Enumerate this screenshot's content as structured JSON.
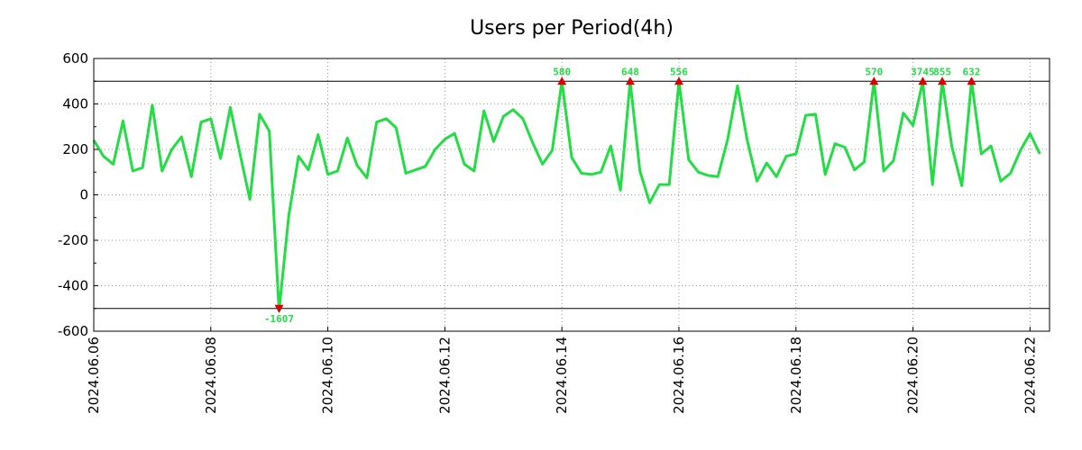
{
  "chart_data": {
    "type": "line",
    "title": "Users per Period(4h)",
    "xlabel": "",
    "ylabel": "",
    "ylim": [
      -600,
      600
    ],
    "xlim": [
      0,
      98
    ],
    "grid": true,
    "y_ticks": [
      600,
      400,
      200,
      0,
      -200,
      -400,
      -600
    ],
    "y_tick_labels": [
      "600",
      "400",
      "200",
      "0",
      "-200",
      "-400",
      "-600"
    ],
    "x_ticks": [
      {
        "x": 0,
        "label": "2024.06.06"
      },
      {
        "x": 12,
        "label": "2024.06.08"
      },
      {
        "x": 24,
        "label": "2024.06.10"
      },
      {
        "x": 36,
        "label": "2024.06.12"
      },
      {
        "x": 48,
        "label": "2024.06.14"
      },
      {
        "x": 60,
        "label": "2024.06.16"
      },
      {
        "x": 72,
        "label": "2024.06.18"
      },
      {
        "x": 84,
        "label": "2024.06.20"
      },
      {
        "x": 96,
        "label": "2024.06.22"
      }
    ],
    "thresholds": [
      500,
      -500
    ],
    "series": [
      {
        "name": "Users",
        "color": "#22dd44",
        "values": [
          240,
          170,
          135,
          325,
          105,
          120,
          395,
          105,
          200,
          255,
          80,
          320,
          335,
          160,
          385,
          180,
          -20,
          355,
          280,
          -510,
          -90,
          170,
          110,
          265,
          90,
          105,
          250,
          130,
          75,
          320,
          335,
          295,
          95,
          110,
          125,
          200,
          245,
          270,
          135,
          105,
          370,
          235,
          345,
          375,
          335,
          230,
          135,
          195,
          500,
          165,
          95,
          90,
          100,
          215,
          20,
          500,
          105,
          -35,
          45,
          45,
          500,
          155,
          100,
          85,
          80,
          245,
          480,
          240,
          60,
          140,
          80,
          170,
          180,
          350,
          355,
          90,
          225,
          210,
          110,
          145,
          500,
          105,
          150,
          360,
          305,
          500,
          45,
          500,
          210,
          40,
          500,
          180,
          215,
          60,
          95,
          195,
          270,
          180
        ]
      }
    ],
    "clipped_markers": [
      {
        "index": 48,
        "label": "580",
        "direction": "up"
      },
      {
        "index": 55,
        "label": "648",
        "direction": "up"
      },
      {
        "index": 60,
        "label": "556",
        "direction": "up"
      },
      {
        "index": 80,
        "label": "570",
        "direction": "up"
      },
      {
        "index": 85,
        "label": "3745",
        "direction": "up"
      },
      {
        "index": 87,
        "label": "855",
        "direction": "up"
      },
      {
        "index": 90,
        "label": "632",
        "direction": "up"
      },
      {
        "index": 19,
        "label": "-1607",
        "direction": "down"
      }
    ],
    "colors": {
      "line": "#22dd44",
      "marker": "#dd0000",
      "grid": "#999999",
      "threshold": "#000000"
    }
  }
}
